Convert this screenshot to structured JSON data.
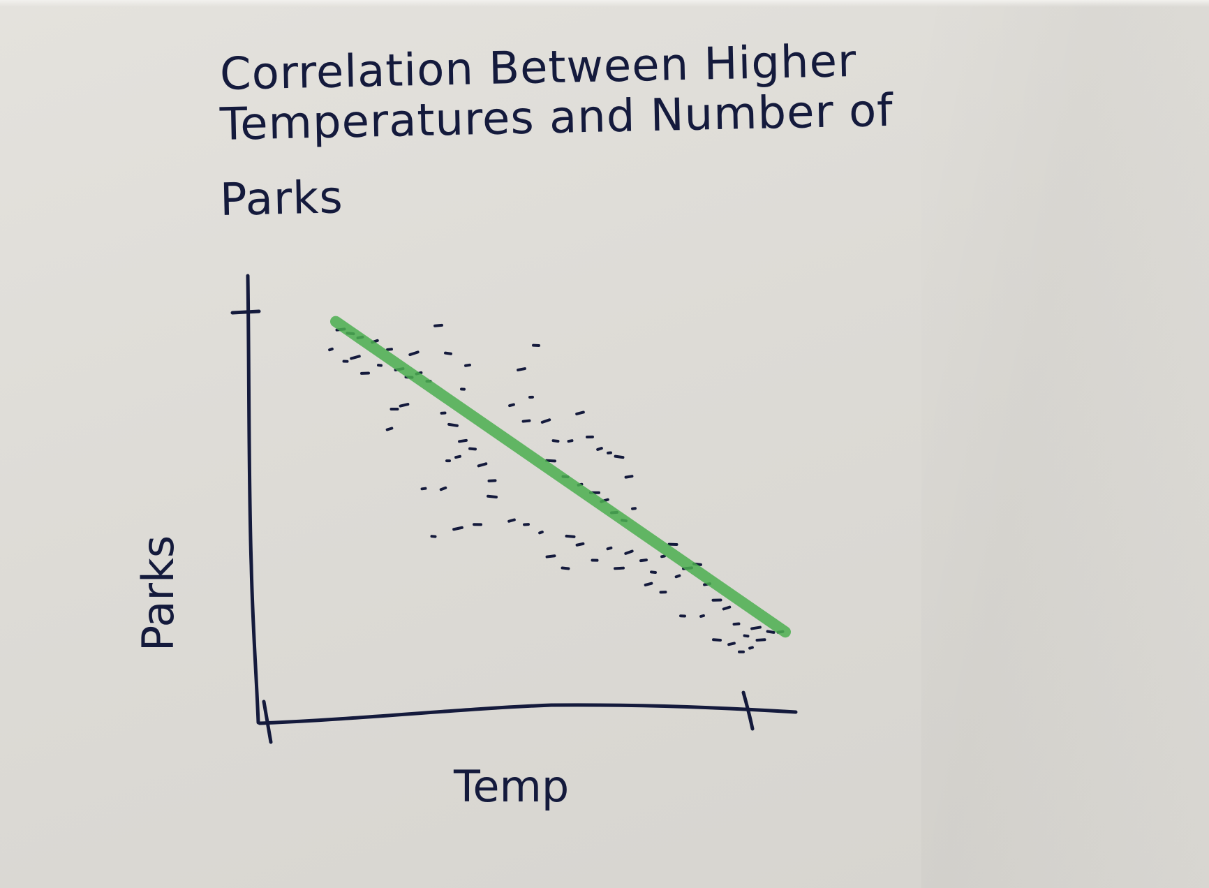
{
  "colors": {
    "ink": "#141a3c",
    "trend": "#4caf50",
    "paper": "#e0ded9"
  },
  "chart_data": {
    "type": "scatter",
    "title_lines": [
      "Correlation Between Higher",
      "Temperatures and Number of",
      "Parks"
    ],
    "xlabel": "Temp",
    "ylabel": "Parks",
    "xlim": [
      0,
      100
    ],
    "ylim": [
      0,
      100
    ],
    "grid": false,
    "legend": "none",
    "trend_line": {
      "x": [
        8,
        100
      ],
      "y": [
        92,
        14
      ]
    },
    "points": [
      {
        "x": 7,
        "y": 85
      },
      {
        "x": 9,
        "y": 90
      },
      {
        "x": 11,
        "y": 89
      },
      {
        "x": 13,
        "y": 88
      },
      {
        "x": 10,
        "y": 82
      },
      {
        "x": 12,
        "y": 83
      },
      {
        "x": 14,
        "y": 79
      },
      {
        "x": 16,
        "y": 87
      },
      {
        "x": 19,
        "y": 85
      },
      {
        "x": 17,
        "y": 81
      },
      {
        "x": 21,
        "y": 80
      },
      {
        "x": 23,
        "y": 78
      },
      {
        "x": 25,
        "y": 79
      },
      {
        "x": 27,
        "y": 77
      },
      {
        "x": 24,
        "y": 84
      },
      {
        "x": 29,
        "y": 91
      },
      {
        "x": 31,
        "y": 84
      },
      {
        "x": 35,
        "y": 81
      },
      {
        "x": 34,
        "y": 75
      },
      {
        "x": 22,
        "y": 71
      },
      {
        "x": 20,
        "y": 70
      },
      {
        "x": 19,
        "y": 65
      },
      {
        "x": 30,
        "y": 69
      },
      {
        "x": 32,
        "y": 66
      },
      {
        "x": 34,
        "y": 62
      },
      {
        "x": 36,
        "y": 60
      },
      {
        "x": 33,
        "y": 58
      },
      {
        "x": 31,
        "y": 57
      },
      {
        "x": 38,
        "y": 56
      },
      {
        "x": 40,
        "y": 52
      },
      {
        "x": 30,
        "y": 50
      },
      {
        "x": 26,
        "y": 50
      },
      {
        "x": 40,
        "y": 48
      },
      {
        "x": 46,
        "y": 80
      },
      {
        "x": 49,
        "y": 86
      },
      {
        "x": 44,
        "y": 71
      },
      {
        "x": 48,
        "y": 73
      },
      {
        "x": 51,
        "y": 67
      },
      {
        "x": 47,
        "y": 67
      },
      {
        "x": 53,
        "y": 62
      },
      {
        "x": 56,
        "y": 62
      },
      {
        "x": 52,
        "y": 57
      },
      {
        "x": 58,
        "y": 69
      },
      {
        "x": 60,
        "y": 63
      },
      {
        "x": 62,
        "y": 60
      },
      {
        "x": 64,
        "y": 59
      },
      {
        "x": 66,
        "y": 58
      },
      {
        "x": 68,
        "y": 53
      },
      {
        "x": 55,
        "y": 53
      },
      {
        "x": 58,
        "y": 51
      },
      {
        "x": 61,
        "y": 49
      },
      {
        "x": 63,
        "y": 47
      },
      {
        "x": 65,
        "y": 44
      },
      {
        "x": 67,
        "y": 42
      },
      {
        "x": 69,
        "y": 45
      },
      {
        "x": 56,
        "y": 38
      },
      {
        "x": 58,
        "y": 36
      },
      {
        "x": 61,
        "y": 32
      },
      {
        "x": 64,
        "y": 35
      },
      {
        "x": 66,
        "y": 30
      },
      {
        "x": 68,
        "y": 34
      },
      {
        "x": 71,
        "y": 32
      },
      {
        "x": 73,
        "y": 29
      },
      {
        "x": 75,
        "y": 33
      },
      {
        "x": 77,
        "y": 36
      },
      {
        "x": 72,
        "y": 26
      },
      {
        "x": 75,
        "y": 24
      },
      {
        "x": 78,
        "y": 28
      },
      {
        "x": 80,
        "y": 30
      },
      {
        "x": 82,
        "y": 31
      },
      {
        "x": 84,
        "y": 26
      },
      {
        "x": 79,
        "y": 18
      },
      {
        "x": 83,
        "y": 18
      },
      {
        "x": 86,
        "y": 22
      },
      {
        "x": 88,
        "y": 20
      },
      {
        "x": 90,
        "y": 16
      },
      {
        "x": 92,
        "y": 13
      },
      {
        "x": 94,
        "y": 15
      },
      {
        "x": 86,
        "y": 12
      },
      {
        "x": 89,
        "y": 11
      },
      {
        "x": 91,
        "y": 9
      },
      {
        "x": 93,
        "y": 10
      },
      {
        "x": 95,
        "y": 12
      },
      {
        "x": 97,
        "y": 14
      },
      {
        "x": 99,
        "y": 14
      },
      {
        "x": 28,
        "y": 38
      },
      {
        "x": 33,
        "y": 40
      },
      {
        "x": 37,
        "y": 41
      },
      {
        "x": 44,
        "y": 42
      },
      {
        "x": 47,
        "y": 41
      },
      {
        "x": 50,
        "y": 39
      },
      {
        "x": 52,
        "y": 33
      },
      {
        "x": 55,
        "y": 30
      }
    ]
  }
}
